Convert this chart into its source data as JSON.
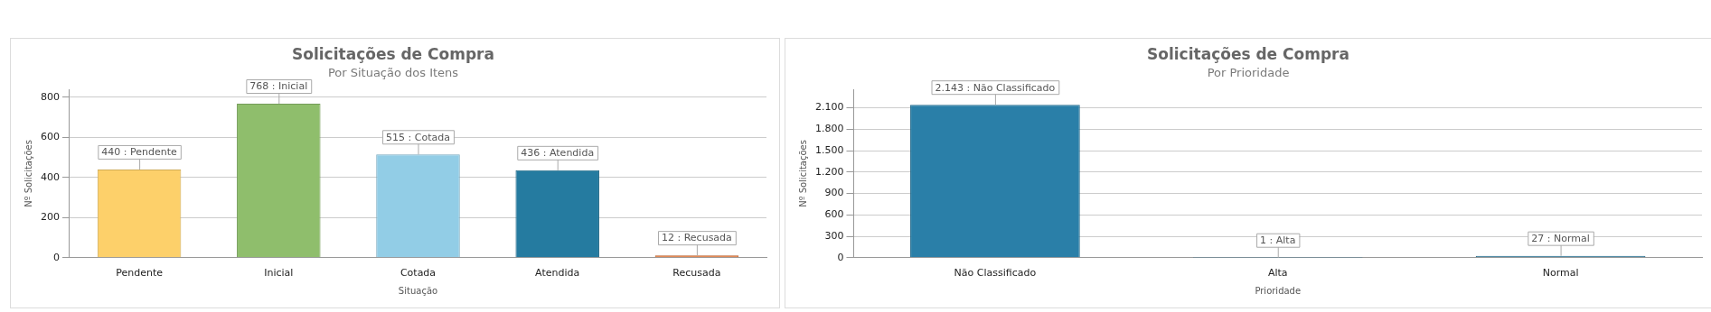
{
  "chart_data": [
    {
      "type": "bar",
      "title": "Solicitações de Compra",
      "subtitle": "Por Situação dos Itens",
      "xlabel": "Situação",
      "ylabel": "Nº Solicitações",
      "categories": [
        "Pendente",
        "Inicial",
        "Cotada",
        "Atendida",
        "Recusada"
      ],
      "values": [
        440,
        768,
        515,
        436,
        12
      ],
      "colors": [
        "#fdd06a",
        "#8fbe6c",
        "#92cde6",
        "#257ba0",
        "#e07030"
      ],
      "value_labels": [
        "440 : Pendente",
        "768 : Inicial",
        "515 : Cotada",
        "436 : Atendida",
        "12 : Recusada"
      ],
      "ylim": [
        0,
        840
      ],
      "yticks": [
        0,
        200,
        400,
        600,
        800
      ],
      "grid": "y",
      "legend": false
    },
    {
      "type": "bar",
      "title": "Solicitações de Compra",
      "subtitle": "Por Prioridade",
      "xlabel": "Prioridade",
      "ylabel": "Nº Solicitações",
      "categories": [
        "Não Classificado",
        "Alta",
        "Normal"
      ],
      "values": [
        2143,
        1,
        27
      ],
      "colors": [
        "#2a7fa8",
        "#2a7fa8",
        "#1f6e93"
      ],
      "value_labels": [
        "2.143 : Não Classificado",
        "1 : Alta",
        "27 : Normal"
      ],
      "ylim": [
        0,
        2360
      ],
      "yticks": [
        0,
        300,
        600,
        900,
        {
          "value": 1200,
          "label": "1.200"
        },
        {
          "value": 1500,
          "label": "1.500"
        },
        {
          "value": 1800,
          "label": "1.800"
        },
        {
          "value": 2100,
          "label": "2.100"
        }
      ],
      "grid": "y",
      "legend": false
    }
  ]
}
